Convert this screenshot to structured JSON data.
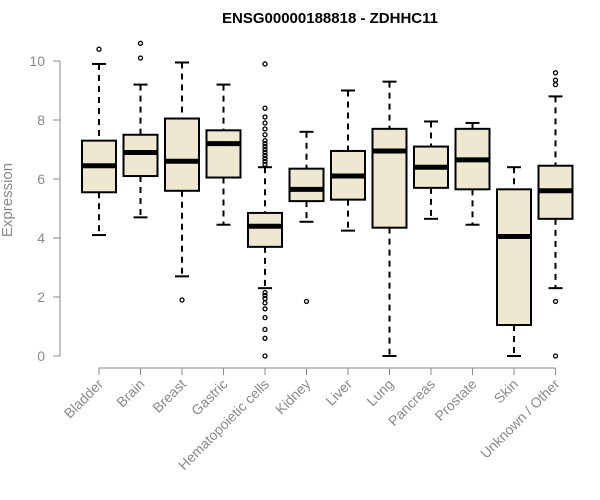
{
  "chart_data": {
    "type": "boxplot",
    "title": "ENSG00000188818 - ZDHHC11",
    "xlabel": "",
    "ylabel": "Expression",
    "ylim": [
      0,
      10
    ],
    "yticks": [
      0,
      2,
      4,
      6,
      8,
      10
    ],
    "colors": {
      "box_fill": "#ede8cf",
      "stroke": "#000000",
      "axis": "#8a8a8a"
    },
    "series": [
      {
        "name": "Bladder",
        "whisker_low": 4.1,
        "q1": 5.55,
        "median": 6.45,
        "q3": 7.3,
        "whisker_high": 9.9,
        "outliers": [
          10.4
        ]
      },
      {
        "name": "Brain",
        "whisker_low": 4.7,
        "q1": 6.1,
        "median": 6.9,
        "q3": 7.5,
        "whisker_high": 9.2,
        "outliers": [
          10.1,
          10.6
        ]
      },
      {
        "name": "Breast",
        "whisker_low": 2.7,
        "q1": 5.6,
        "median": 6.6,
        "q3": 8.05,
        "whisker_high": 9.95,
        "outliers": [
          1.9
        ]
      },
      {
        "name": "Gastric",
        "whisker_low": 4.45,
        "q1": 6.05,
        "median": 7.2,
        "q3": 7.65,
        "whisker_high": 9.2,
        "outliers": []
      },
      {
        "name": "Hematopoietic cells",
        "whisker_low": 2.3,
        "q1": 3.7,
        "median": 4.4,
        "q3": 4.85,
        "whisker_high": 6.4,
        "outliers": [
          0,
          0.6,
          0.9,
          1.3,
          1.6,
          1.8,
          1.95,
          2.05,
          2.15,
          6.5,
          6.6,
          6.7,
          6.8,
          6.9,
          7.0,
          7.1,
          7.2,
          7.3,
          7.5,
          7.7,
          7.9,
          8.1,
          8.4,
          9.9
        ]
      },
      {
        "name": "Kidney",
        "whisker_low": 4.55,
        "q1": 5.25,
        "median": 5.65,
        "q3": 6.35,
        "whisker_high": 7.6,
        "outliers": [
          1.85
        ]
      },
      {
        "name": "Liver",
        "whisker_low": 4.25,
        "q1": 5.3,
        "median": 6.1,
        "q3": 6.95,
        "whisker_high": 9.0,
        "outliers": []
      },
      {
        "name": "Lung",
        "whisker_low": 0.0,
        "q1": 4.35,
        "median": 6.95,
        "q3": 7.7,
        "whisker_high": 9.3,
        "outliers": []
      },
      {
        "name": "Pancreas",
        "whisker_low": 4.65,
        "q1": 5.7,
        "median": 6.4,
        "q3": 7.1,
        "whisker_high": 7.95,
        "outliers": []
      },
      {
        "name": "Prostate",
        "whisker_low": 4.45,
        "q1": 5.65,
        "median": 6.65,
        "q3": 7.7,
        "whisker_high": 7.9,
        "outliers": []
      },
      {
        "name": "Skin",
        "whisker_low": 0.0,
        "q1": 1.05,
        "median": 4.05,
        "q3": 5.65,
        "whisker_high": 6.4,
        "outliers": []
      },
      {
        "name": "Unknown / Other",
        "whisker_low": 2.3,
        "q1": 4.65,
        "median": 5.6,
        "q3": 6.45,
        "whisker_high": 8.8,
        "outliers": [
          0,
          1.85,
          9.2,
          9.35,
          9.6
        ]
      }
    ]
  }
}
